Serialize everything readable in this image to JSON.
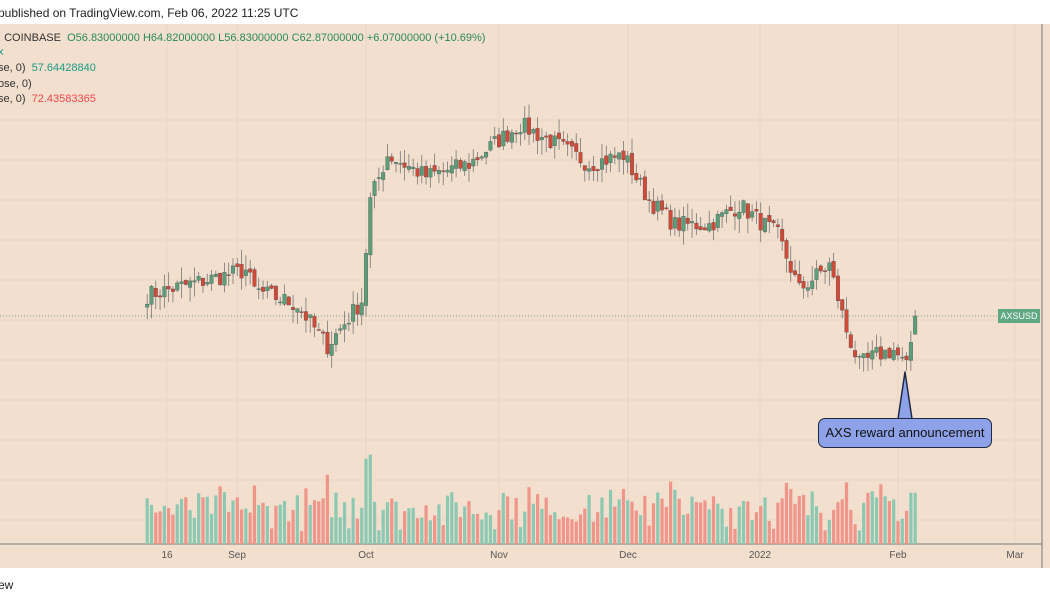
{
  "header": {
    "published": "published on TradingView.com, Feb 06, 2022 11:25 UTC"
  },
  "legend": {
    "symbol_prefix": ", COINBASE",
    "ohlc": "O56.83000000  H64.82000000  L56.83000000  C62.87000000  +6.07000000 (+10.69%)",
    "line2": "x",
    "ema1_label": "se, 0)",
    "ema1_value": "57.64428840",
    "ema2_label": "ose, 0)",
    "ema3_label": "se, 0)",
    "ema3_value": "72.43583365"
  },
  "price_label": "AXSUSD",
  "annotation": "AXS reward announcement",
  "footer_text": "ew",
  "colors": {
    "background": "#f2dfce",
    "up": "#5b9e7a",
    "down": "#d04a3a",
    "ema_fast": "#1e8c74",
    "ema_slow": "#f0464c",
    "vol_up": "#8cc9b3",
    "vol_down": "#f0958a",
    "annotation": "#8ea2ea"
  },
  "chart_data": {
    "type": "candlestick",
    "x_ticks": [
      "16",
      "Sep",
      "Oct",
      "Nov",
      "Dec",
      "2022",
      "Feb",
      "Mar"
    ],
    "close_keypoints": [
      {
        "date": "2021-08-11",
        "close": 69.8
      },
      {
        "date": "2021-08-20",
        "close": 73
      },
      {
        "date": "2021-09-03",
        "close": 78
      },
      {
        "date": "2021-09-05",
        "close": 71.5
      },
      {
        "date": "2021-09-15",
        "close": 66.5
      },
      {
        "date": "2021-09-22",
        "close": 53
      },
      {
        "date": "2021-09-30",
        "close": 68
      },
      {
        "date": "2021-10-02",
        "close": 101
      },
      {
        "date": "2021-10-06",
        "close": 116
      },
      {
        "date": "2021-10-15",
        "close": 109
      },
      {
        "date": "2021-10-25",
        "close": 113
      },
      {
        "date": "2021-11-01",
        "close": 121
      },
      {
        "date": "2021-11-06",
        "close": 126
      },
      {
        "date": "2021-11-15",
        "close": 119
      },
      {
        "date": "2021-11-22",
        "close": 113
      },
      {
        "date": "2021-11-30",
        "close": 116
      },
      {
        "date": "2021-12-06",
        "close": 101
      },
      {
        "date": "2021-12-12",
        "close": 93
      },
      {
        "date": "2021-12-20",
        "close": 93
      },
      {
        "date": "2021-12-27",
        "close": 99.5
      },
      {
        "date": "2022-01-05",
        "close": 89.6
      },
      {
        "date": "2022-01-10",
        "close": 71.5
      },
      {
        "date": "2022-01-17",
        "close": 79.7
      },
      {
        "date": "2022-01-21",
        "close": 58
      },
      {
        "date": "2022-01-24",
        "close": 46.7
      },
      {
        "date": "2022-01-28",
        "close": 50
      },
      {
        "date": "2022-02-01",
        "close": 51.6
      },
      {
        "date": "2022-02-04",
        "close": 45.7
      },
      {
        "date": "2022-02-06",
        "close": 62.87
      }
    ],
    "last": {
      "open": 56.83,
      "high": 64.82,
      "low": 56.83,
      "close": 62.87
    },
    "ema_fast_last": 57.6442884,
    "ema_slow_last": 72.43583365,
    "volume": true
  }
}
